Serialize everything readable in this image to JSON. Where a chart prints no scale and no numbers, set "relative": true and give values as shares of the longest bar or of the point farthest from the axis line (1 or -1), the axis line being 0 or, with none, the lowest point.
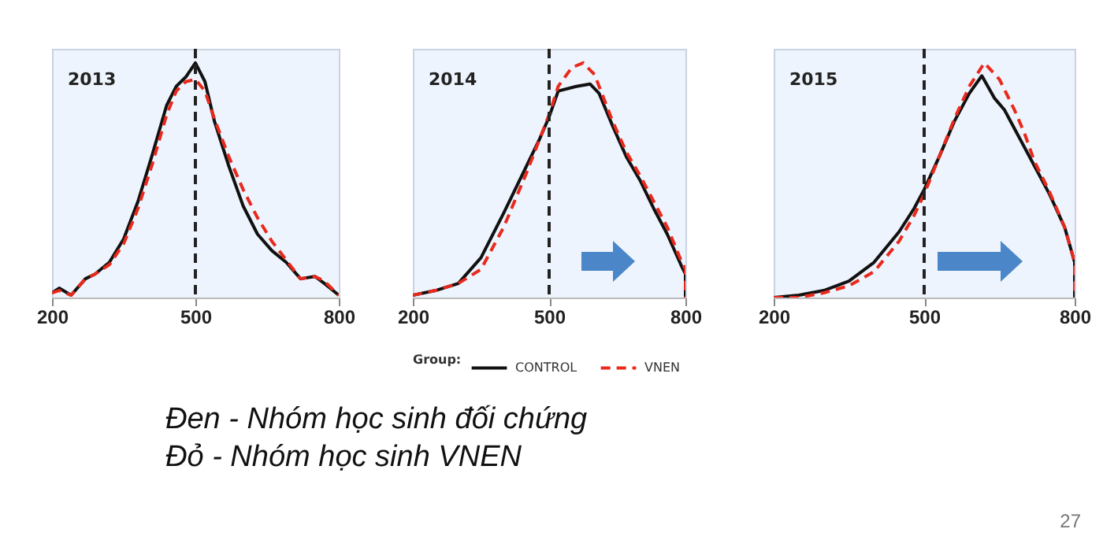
{
  "chart_data": [
    {
      "type": "line",
      "title": "2013",
      "relative": true,
      "xlim": [
        200,
        800
      ],
      "xticks": [
        200,
        500,
        800
      ],
      "grid": false,
      "legend": false,
      "ref_lines": [
        {
          "axis": "x",
          "value": 500,
          "color": "#222222",
          "line_style": "dashed"
        }
      ],
      "series": [
        {
          "color": "#111111",
          "line_style": "solid",
          "x": [
            200,
            215,
            240,
            270,
            290,
            320,
            350,
            380,
            410,
            440,
            460,
            480,
            500,
            520,
            540,
            570,
            600,
            630,
            660,
            690,
            720,
            750,
            770,
            800
          ],
          "values": [
            0.02,
            0.04,
            0.01,
            0.08,
            0.1,
            0.15,
            0.25,
            0.41,
            0.61,
            0.82,
            0.9,
            0.94,
            1.0,
            0.92,
            0.75,
            0.56,
            0.39,
            0.27,
            0.2,
            0.15,
            0.08,
            0.09,
            0.06,
            0.01
          ]
        },
        {
          "color": "#e8291c",
          "line_style": "dashed",
          "x": [
            200,
            215,
            240,
            270,
            290,
            320,
            350,
            380,
            410,
            440,
            460,
            480,
            500,
            520,
            540,
            570,
            600,
            630,
            660,
            690,
            720,
            750,
            770,
            800
          ],
          "values": [
            0.02,
            0.03,
            0.01,
            0.08,
            0.1,
            0.14,
            0.23,
            0.38,
            0.57,
            0.78,
            0.88,
            0.92,
            0.93,
            0.88,
            0.76,
            0.6,
            0.46,
            0.34,
            0.24,
            0.16,
            0.08,
            0.09,
            0.07,
            0.01
          ]
        }
      ]
    },
    {
      "type": "line",
      "title": "2014",
      "relative": true,
      "xlim": [
        200,
        800
      ],
      "xticks": [
        200,
        500,
        800
      ],
      "grid": false,
      "legend": "bottom",
      "legend_title": "Group:",
      "ref_lines": [
        {
          "axis": "x",
          "value": 500,
          "color": "#222222",
          "line_style": "dashed"
        }
      ],
      "annotations": [
        "Đen - Nhóm học sinh đối chứng",
        "Đỏ - Nhóm học sinh VNEN"
      ],
      "series": [
        {
          "name": "CONTROL",
          "color": "#111111",
          "line_style": "solid",
          "x": [
            200,
            250,
            300,
            350,
            400,
            450,
            480,
            500,
            520,
            560,
            590,
            610,
            640,
            670,
            700,
            730,
            760,
            790,
            800,
            800
          ],
          "values": [
            0.01,
            0.03,
            0.06,
            0.17,
            0.36,
            0.56,
            0.68,
            0.77,
            0.88,
            0.9,
            0.91,
            0.87,
            0.73,
            0.6,
            0.5,
            0.38,
            0.27,
            0.14,
            0.1,
            0
          ]
        },
        {
          "name": "VNEN",
          "color": "#e8291c",
          "line_style": "dashed",
          "x": [
            200,
            250,
            300,
            350,
            400,
            450,
            480,
            500,
            520,
            550,
            575,
            600,
            640,
            670,
            700,
            730,
            760,
            790,
            800,
            800
          ],
          "values": [
            0.01,
            0.03,
            0.06,
            0.12,
            0.3,
            0.53,
            0.68,
            0.78,
            0.9,
            0.98,
            1.0,
            0.95,
            0.75,
            0.62,
            0.52,
            0.41,
            0.3,
            0.16,
            0.12,
            0
          ]
        }
      ]
    },
    {
      "type": "line",
      "title": "2015",
      "relative": true,
      "xlim": [
        200,
        800
      ],
      "xticks": [
        200,
        500,
        800
      ],
      "grid": false,
      "legend": false,
      "ref_lines": [
        {
          "axis": "x",
          "value": 500,
          "color": "#222222",
          "line_style": "dashed"
        }
      ],
      "annotations": [
        "27"
      ],
      "series": [
        {
          "color": "#111111",
          "line_style": "solid",
          "x": [
            200,
            250,
            300,
            350,
            400,
            450,
            480,
            500,
            530,
            560,
            590,
            615,
            640,
            660,
            690,
            720,
            750,
            780,
            800,
            800
          ],
          "values": [
            0,
            0.01,
            0.03,
            0.07,
            0.15,
            0.28,
            0.38,
            0.46,
            0.6,
            0.75,
            0.87,
            0.945,
            0.85,
            0.8,
            0.68,
            0.56,
            0.44,
            0.3,
            0.15,
            0
          ]
        },
        {
          "color": "#e8291c",
          "line_style": "dashed",
          "x": [
            200,
            250,
            300,
            350,
            400,
            450,
            480,
            500,
            530,
            560,
            590,
            620,
            650,
            680,
            700,
            720,
            750,
            780,
            800,
            800
          ],
          "values": [
            0,
            0,
            0.02,
            0.05,
            0.11,
            0.24,
            0.35,
            0.44,
            0.6,
            0.76,
            0.9,
            1.0,
            0.93,
            0.8,
            0.7,
            0.58,
            0.45,
            0.3,
            0.15,
            0
          ]
        }
      ]
    }
  ]
}
